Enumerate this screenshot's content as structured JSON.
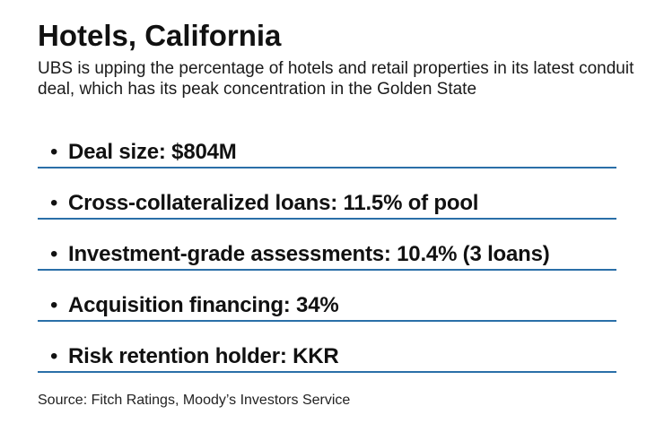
{
  "header": {
    "title": "Hotels, California",
    "subtitle": "UBS is upping the percentage of hotels and retail properties in its latest conduit deal, which has its peak concentration in the Golden State"
  },
  "bullets": [
    "Deal size: $804M",
    "Cross-collateralized loans: 11.5% of pool",
    "Investment-grade assessments: 10.4% (3 loans)",
    "Acquisition financing: 34%",
    "Risk retention holder: KKR"
  ],
  "footer": {
    "source": "Source: Fitch Ratings, Moody’s Investors Service"
  },
  "colors": {
    "divider": "#2a6fa8",
    "text": "#111111"
  }
}
